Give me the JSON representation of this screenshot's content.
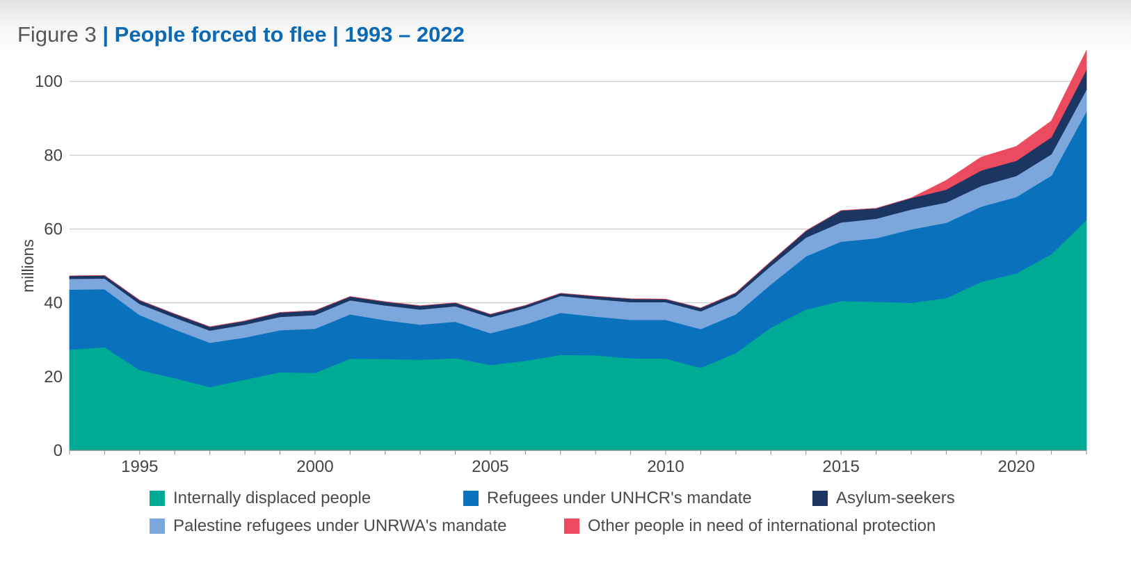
{
  "title": {
    "prefix": "Figure 3",
    "separator": "|",
    "main": "People forced to flee | 1993 – 2022"
  },
  "colors": {
    "idp": "#00ab96",
    "refugees_unhcr": "#0a72bd",
    "asylum_seekers": "#1c3664",
    "palestine_unrwa": "#7ba7dd",
    "other_protection": "#ec4a5f",
    "title_blue": "#0b6ab3",
    "gridline": "#c8c8c8"
  },
  "legend": {
    "row1": [
      "Internally displaced people",
      "Refugees under UNHCR's mandate",
      "Asylum-seekers"
    ],
    "row2": [
      "Palestine refugees under UNRWA's mandate",
      "Other people in need of international protection"
    ]
  },
  "chart_data": {
    "type": "area",
    "stacked": true,
    "ylabel": "millions",
    "xlabel": "",
    "ylim": [
      0,
      107
    ],
    "yticks": [
      0,
      20,
      40,
      60,
      80,
      100
    ],
    "xticks": [
      1995,
      2000,
      2005,
      2010,
      2015,
      2020
    ],
    "grid": true,
    "legend_position": "bottom",
    "x": [
      1993,
      1994,
      1995,
      1996,
      1997,
      1998,
      1999,
      2000,
      2001,
      2002,
      2003,
      2004,
      2005,
      2006,
      2007,
      2008,
      2009,
      2010,
      2011,
      2012,
      2013,
      2014,
      2015,
      2016,
      2017,
      2018,
      2019,
      2020,
      2021,
      2022
    ],
    "series": [
      {
        "name": "Internally displaced people",
        "color": "#00ab96",
        "values": [
          27.3,
          28.0,
          21.8,
          19.6,
          17.2,
          19.2,
          21.2,
          21.0,
          24.9,
          24.8,
          24.6,
          25.0,
          23.2,
          24.3,
          25.9,
          25.8,
          25.0,
          24.9,
          22.4,
          26.4,
          33.3,
          38.2,
          40.5,
          40.3,
          40.0,
          41.3,
          45.7,
          48.0,
          53.2,
          62.5
        ]
      },
      {
        "name": "Refugees under UNHCR's mandate",
        "color": "#0a72bd",
        "values": [
          16.3,
          15.7,
          14.9,
          13.2,
          12.0,
          11.4,
          11.4,
          12.0,
          12.0,
          10.5,
          9.5,
          9.9,
          8.6,
          9.9,
          11.4,
          10.5,
          10.4,
          10.5,
          10.5,
          10.5,
          11.7,
          14.4,
          16.1,
          17.2,
          19.9,
          20.4,
          20.4,
          20.7,
          21.3,
          29.4
        ]
      },
      {
        "name": "Palestine refugees under UNRWA's mandate",
        "color": "#7ba7dd",
        "values": [
          2.9,
          2.9,
          3.0,
          3.2,
          3.3,
          3.5,
          3.6,
          3.7,
          3.8,
          4.0,
          4.1,
          4.2,
          4.3,
          4.4,
          4.6,
          4.7,
          4.8,
          4.8,
          4.8,
          4.9,
          5.0,
          5.1,
          5.2,
          5.3,
          5.4,
          5.5,
          5.6,
          5.7,
          5.8,
          5.9
        ]
      },
      {
        "name": "Asylum-seekers",
        "color": "#1c3664",
        "values": [
          0.8,
          0.8,
          1.0,
          1.0,
          1.0,
          1.0,
          1.2,
          1.2,
          1.0,
          1.0,
          1.0,
          0.9,
          0.8,
          0.7,
          0.7,
          0.8,
          0.9,
          0.8,
          0.9,
          0.9,
          1.2,
          1.8,
          3.2,
          2.8,
          3.1,
          3.5,
          4.2,
          4.1,
          4.6,
          5.4
        ]
      },
      {
        "name": "Other people in need of international protection",
        "color": "#ec4a5f",
        "values": [
          0,
          0,
          0,
          0,
          0,
          0,
          0,
          0,
          0,
          0,
          0,
          0,
          0,
          0,
          0,
          0,
          0,
          0,
          0,
          0,
          0,
          0,
          0,
          0,
          0,
          2.5,
          3.6,
          3.9,
          4.4,
          5.2
        ]
      }
    ]
  }
}
